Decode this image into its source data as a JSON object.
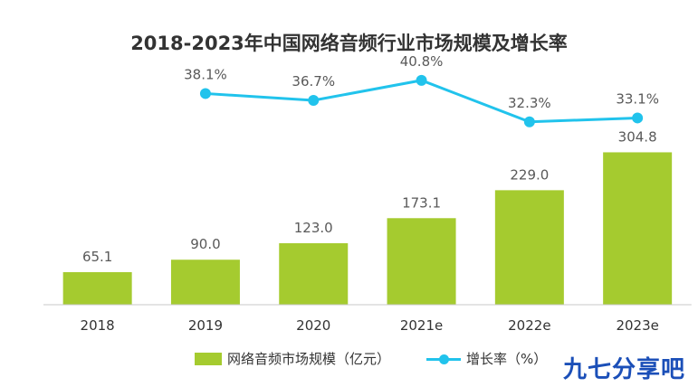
{
  "title": "2018-2023年中国网络音频行业市场规模及增长率",
  "watermark": "九七分享吧",
  "colors": {
    "bar": "#a5cb2f",
    "line": "#21c3ec",
    "label": "#595959",
    "axis": "#c8c8c8"
  },
  "legend": {
    "bar_label": "网络音频市场规模（亿元）",
    "line_label": "增长率（%）"
  },
  "chart_data": {
    "type": "bar",
    "title": "2018-2023年中国网络音频行业市场规模及增长率",
    "categories": [
      "2018",
      "2019",
      "2020",
      "2021e",
      "2022e",
      "2023e"
    ],
    "series": [
      {
        "name": "网络音频市场规模（亿元）",
        "type": "bar",
        "values": [
          65.1,
          90.0,
          123.0,
          173.1,
          229.0,
          304.8
        ],
        "labels": [
          "65.1",
          "90.0",
          "123.0",
          "173.1",
          "229.0",
          "304.8"
        ]
      },
      {
        "name": "增长率（%）",
        "type": "line",
        "values": [
          null,
          38.1,
          36.7,
          40.8,
          32.3,
          33.1
        ],
        "labels": [
          "",
          "38.1%",
          "36.7%",
          "40.8%",
          "32.3%",
          "33.1%"
        ]
      }
    ],
    "legend_position": "bottom",
    "grid": false
  }
}
